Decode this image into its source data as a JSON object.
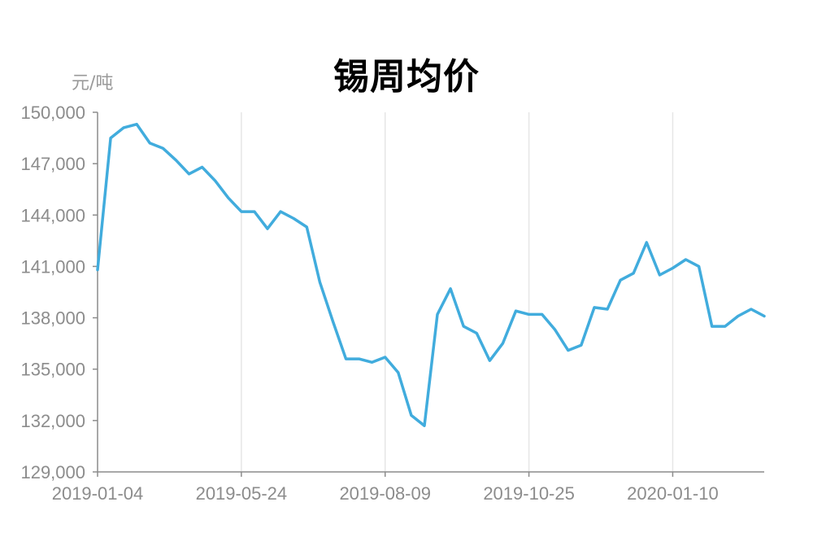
{
  "chart_data": {
    "type": "line",
    "title": "锡周均价",
    "ylabel": "元/吨",
    "xlabel": "",
    "ylim": [
      129000,
      150000
    ],
    "yticks": [
      "150,000",
      "147,000",
      "144,000",
      "141,000",
      "138,000",
      "135,000",
      "132,000",
      "129,000"
    ],
    "ytick_values": [
      150000,
      147000,
      144000,
      141000,
      138000,
      135000,
      132000,
      129000
    ],
    "xticks": [
      "2019-01-04",
      "2019-05-24",
      "2019-08-09",
      "2019-10-25",
      "2020-01-10"
    ],
    "xtick_index": [
      0,
      11,
      22,
      33,
      44
    ],
    "grid": "vertical",
    "series": [
      {
        "color": "#41acdd",
        "values": [
          140800,
          148500,
          149100,
          149300,
          148200,
          147900,
          147200,
          146400,
          146800,
          146000,
          145000,
          144200,
          144200,
          143200,
          144200,
          143800,
          143300,
          140100,
          137800,
          135600,
          135600,
          135400,
          135700,
          134800,
          132300,
          131700,
          138200,
          139700,
          137500,
          137100,
          135500,
          136500,
          138400,
          138200,
          138200,
          137300,
          136100,
          136400,
          138600,
          138500,
          140200,
          140600,
          142400,
          140500,
          140900,
          141400,
          141000,
          137500,
          137500,
          138100,
          138500,
          138100
        ]
      }
    ]
  }
}
